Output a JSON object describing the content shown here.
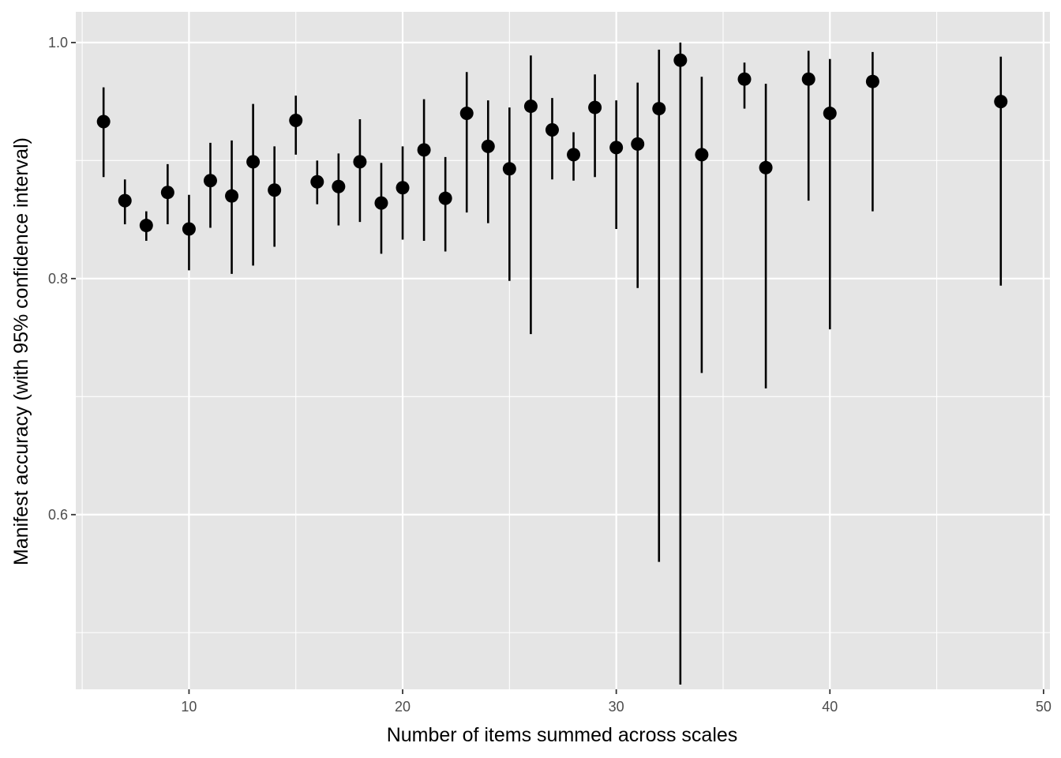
{
  "chart_data": {
    "type": "scatter",
    "title": "",
    "xlabel": "Number of items summed across scales",
    "ylabel": "Manifest accuracy (with 95% confidence interval)",
    "xlim": [
      4.7,
      50.3
    ],
    "ylim": [
      0.452,
      1.026
    ],
    "x_ticks": [
      10,
      20,
      30,
      40,
      50
    ],
    "x_tick_labels": [
      "10",
      "20",
      "30",
      "40",
      "50"
    ],
    "y_ticks": [
      0.6,
      0.8,
      1.0
    ],
    "y_tick_labels": [
      "0.6",
      "0.8",
      "1.0"
    ],
    "x_minor_breaks": [
      5,
      15,
      25,
      35,
      45
    ],
    "y_minor_breaks": [
      0.5,
      0.7,
      0.9
    ],
    "grid": true,
    "legend": "none",
    "colors": {
      "panel_background": "#e5e5e5",
      "grid_line": "#ffffff",
      "point": "#000000",
      "error_bar": "#000000"
    },
    "points": [
      {
        "x": 6,
        "y": 0.933,
        "lower": 0.886,
        "upper": 0.962
      },
      {
        "x": 7,
        "y": 0.866,
        "lower": 0.846,
        "upper": 0.884
      },
      {
        "x": 8,
        "y": 0.845,
        "lower": 0.832,
        "upper": 0.857
      },
      {
        "x": 9,
        "y": 0.873,
        "lower": 0.846,
        "upper": 0.897
      },
      {
        "x": 10,
        "y": 0.842,
        "lower": 0.807,
        "upper": 0.871
      },
      {
        "x": 11,
        "y": 0.883,
        "lower": 0.843,
        "upper": 0.915
      },
      {
        "x": 12,
        "y": 0.87,
        "lower": 0.804,
        "upper": 0.917
      },
      {
        "x": 13,
        "y": 0.899,
        "lower": 0.811,
        "upper": 0.948
      },
      {
        "x": 14,
        "y": 0.875,
        "lower": 0.827,
        "upper": 0.912
      },
      {
        "x": 15,
        "y": 0.934,
        "lower": 0.905,
        "upper": 0.955
      },
      {
        "x": 16,
        "y": 0.882,
        "lower": 0.863,
        "upper": 0.9
      },
      {
        "x": 17,
        "y": 0.878,
        "lower": 0.845,
        "upper": 0.906
      },
      {
        "x": 18,
        "y": 0.899,
        "lower": 0.848,
        "upper": 0.935
      },
      {
        "x": 19,
        "y": 0.864,
        "lower": 0.821,
        "upper": 0.898
      },
      {
        "x": 20,
        "y": 0.877,
        "lower": 0.833,
        "upper": 0.912
      },
      {
        "x": 21,
        "y": 0.909,
        "lower": 0.832,
        "upper": 0.952
      },
      {
        "x": 22,
        "y": 0.868,
        "lower": 0.823,
        "upper": 0.903
      },
      {
        "x": 23,
        "y": 0.94,
        "lower": 0.856,
        "upper": 0.975
      },
      {
        "x": 24,
        "y": 0.912,
        "lower": 0.847,
        "upper": 0.951
      },
      {
        "x": 25,
        "y": 0.893,
        "lower": 0.798,
        "upper": 0.945
      },
      {
        "x": 26,
        "y": 0.946,
        "lower": 0.753,
        "upper": 0.989
      },
      {
        "x": 27,
        "y": 0.926,
        "lower": 0.884,
        "upper": 0.953
      },
      {
        "x": 28,
        "y": 0.905,
        "lower": 0.883,
        "upper": 0.924
      },
      {
        "x": 29,
        "y": 0.945,
        "lower": 0.886,
        "upper": 0.973
      },
      {
        "x": 30,
        "y": 0.911,
        "lower": 0.842,
        "upper": 0.951
      },
      {
        "x": 31,
        "y": 0.914,
        "lower": 0.792,
        "upper": 0.966
      },
      {
        "x": 32,
        "y": 0.944,
        "lower": 0.56,
        "upper": 0.994
      },
      {
        "x": 33,
        "y": 0.985,
        "lower": 0.456,
        "upper": 1.0
      },
      {
        "x": 34,
        "y": 0.905,
        "lower": 0.72,
        "upper": 0.971
      },
      {
        "x": 36,
        "y": 0.969,
        "lower": 0.944,
        "upper": 0.983
      },
      {
        "x": 37,
        "y": 0.894,
        "lower": 0.707,
        "upper": 0.965
      },
      {
        "x": 39,
        "y": 0.969,
        "lower": 0.866,
        "upper": 0.993
      },
      {
        "x": 40,
        "y": 0.94,
        "lower": 0.757,
        "upper": 0.986
      },
      {
        "x": 42,
        "y": 0.967,
        "lower": 0.857,
        "upper": 0.992
      },
      {
        "x": 48,
        "y": 0.95,
        "lower": 0.794,
        "upper": 0.988
      }
    ]
  }
}
